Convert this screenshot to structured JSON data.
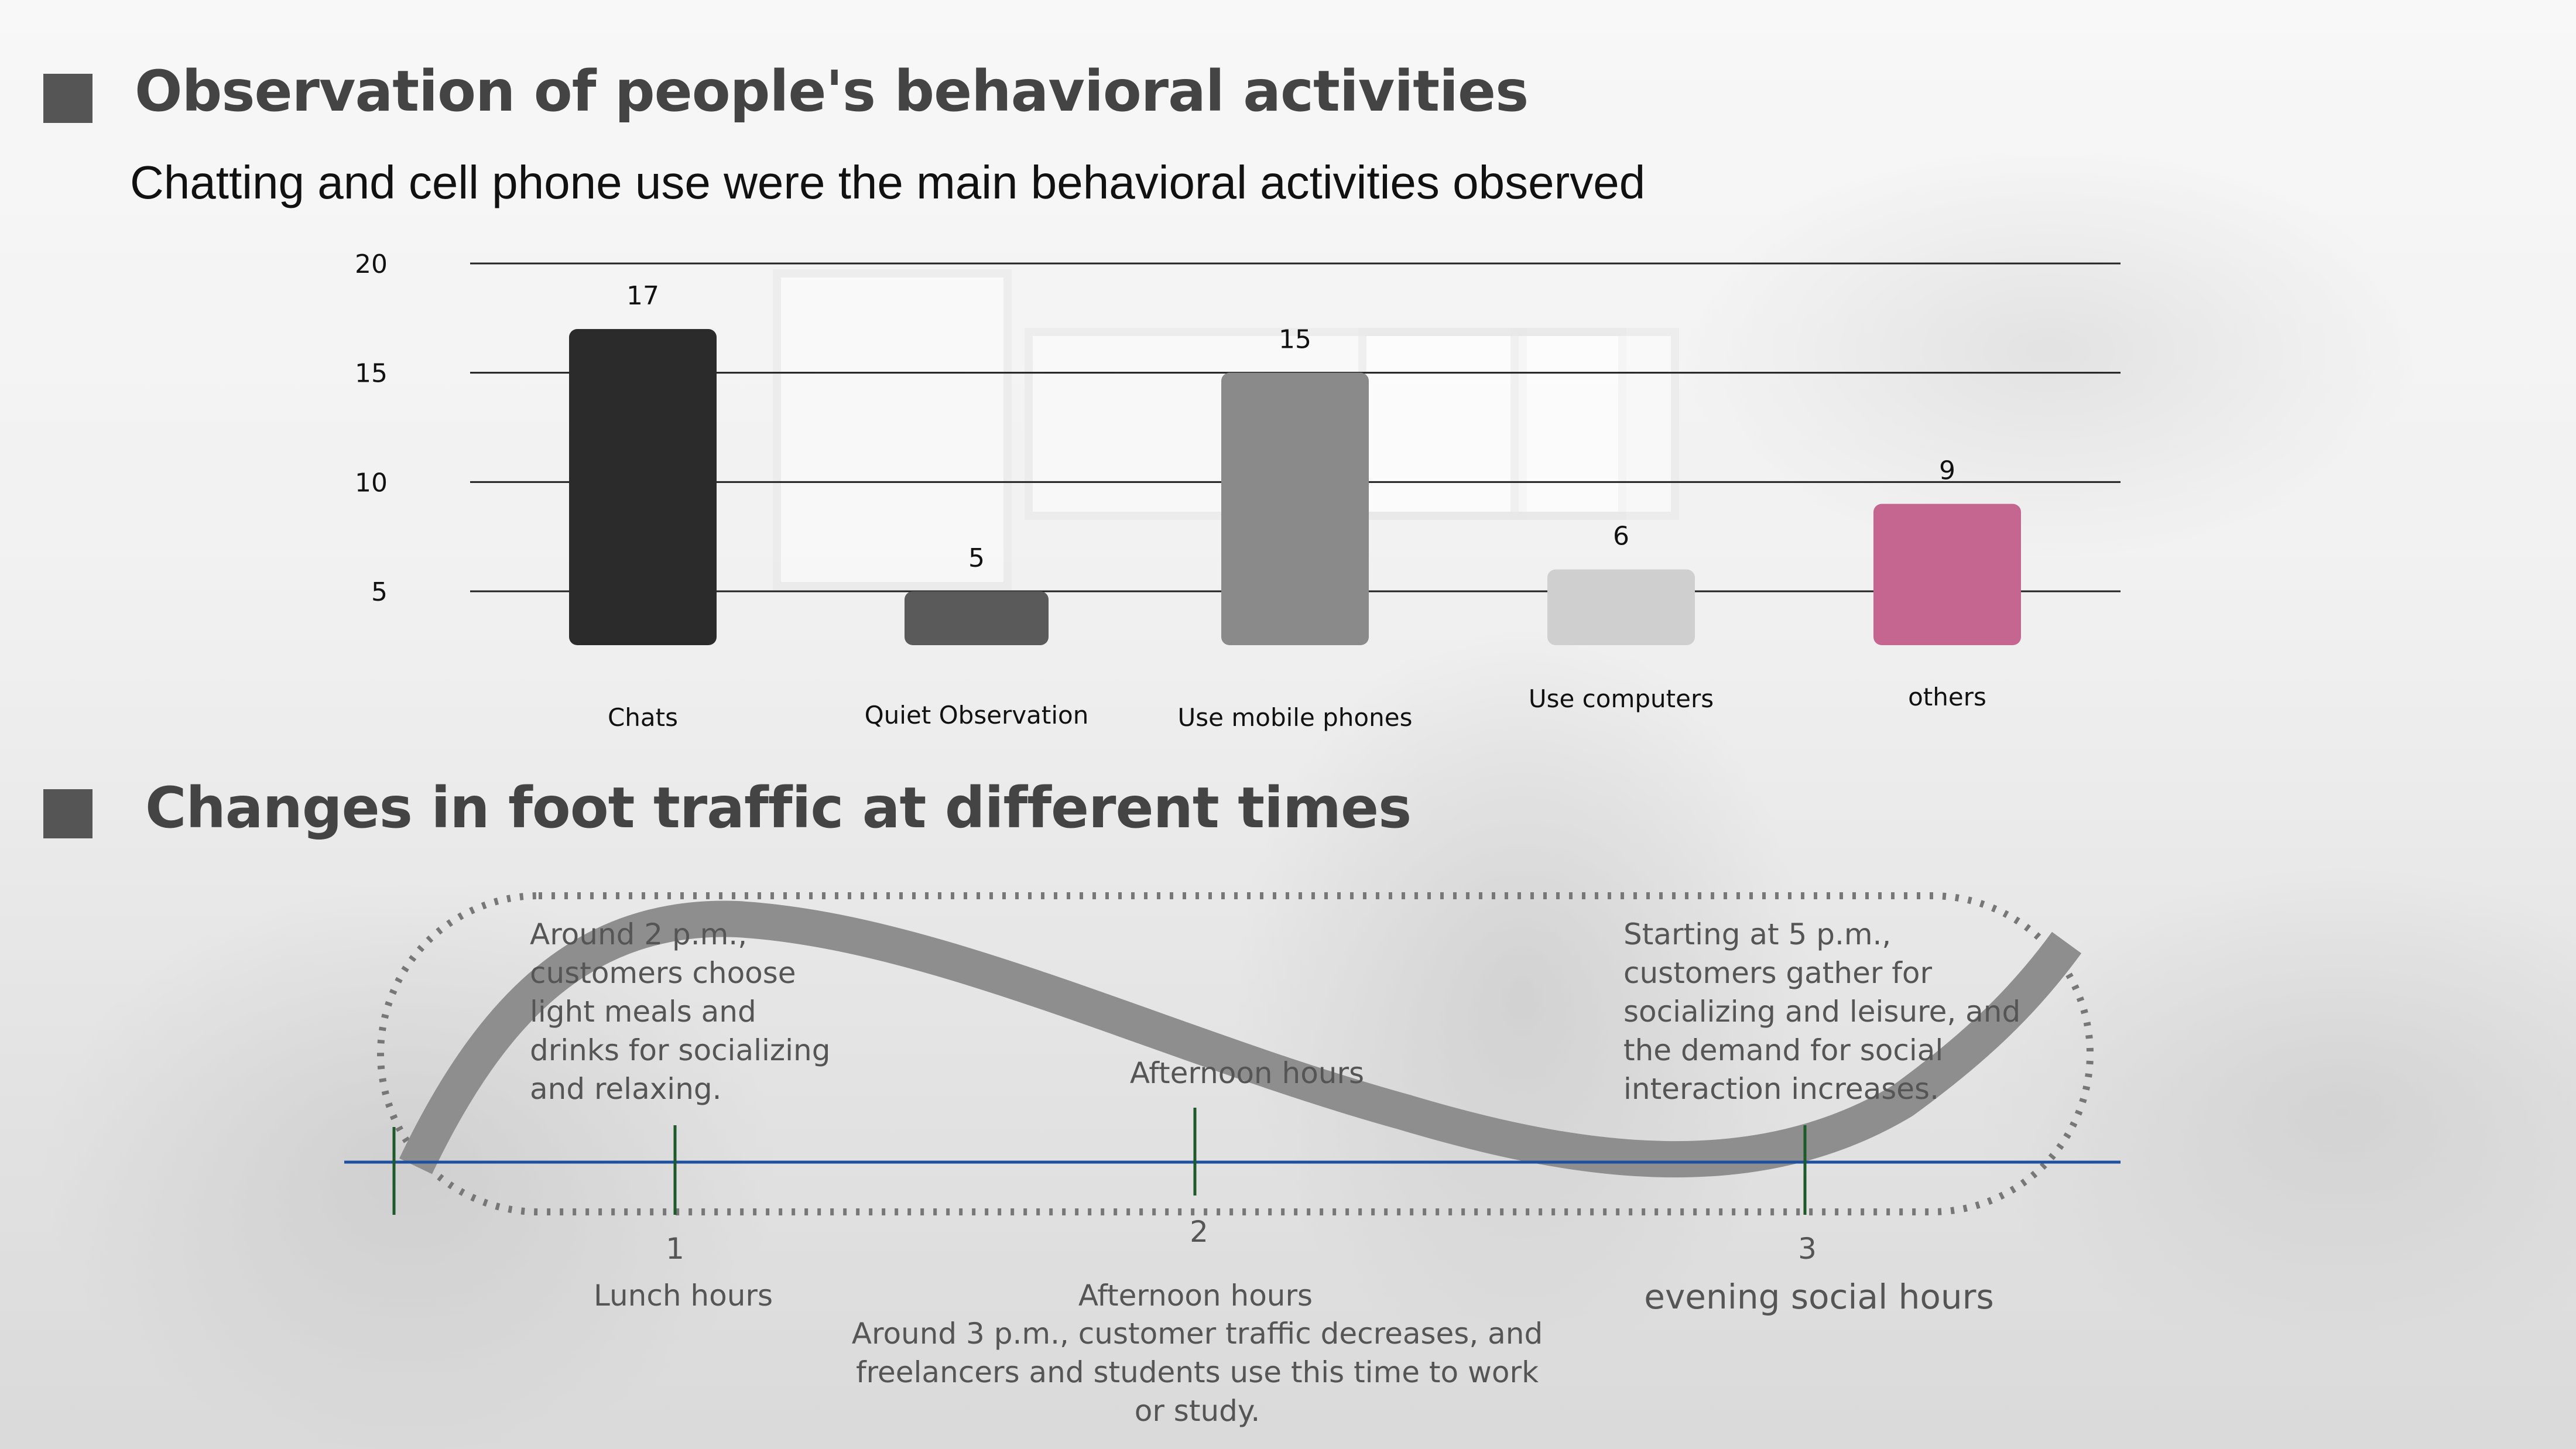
{
  "section1": {
    "title": "Observation of people's behavioral activities"
  },
  "subtitle": "Chatting and cell phone use were the main behavioral activities observed",
  "chart_data": {
    "type": "bar",
    "categories": [
      "Chats",
      "Quiet Observation",
      "Use mobile phones",
      "Use computers",
      "others"
    ],
    "values": [
      17,
      5,
      15,
      6,
      9
    ],
    "colors": [
      "#2b2b2b",
      "#5a5a5a",
      "#8a8a8a",
      "#cfcfcf",
      "#c56690"
    ],
    "y_ticks": [
      5,
      10,
      15,
      20
    ],
    "ylim": [
      0,
      20
    ],
    "grid": true,
    "title": "",
    "xlabel": "",
    "ylabel": ""
  },
  "section2": {
    "title": "Changes in foot traffic at different times"
  },
  "timeline": {
    "points": [
      {
        "number": "1",
        "label": "Lunch hours",
        "note": "Around 2 p.m., customers choose light meals and drinks for socializing and relaxing."
      },
      {
        "number": "2",
        "label": "Afternoon hours",
        "top_label": "Afternoon hours",
        "note": "Around 3 p.m., customer traffic decreases, and freelancers and students use this time to work or study."
      },
      {
        "number": "3",
        "label": "evening social hours",
        "note": "Starting at 5 p.m., customers gather for socializing and leisure, and the demand for social interaction increases."
      }
    ],
    "line_color": "#1f4fa0",
    "tick_color": "#1e5a2a",
    "curve_color": "#8e8e8e"
  }
}
